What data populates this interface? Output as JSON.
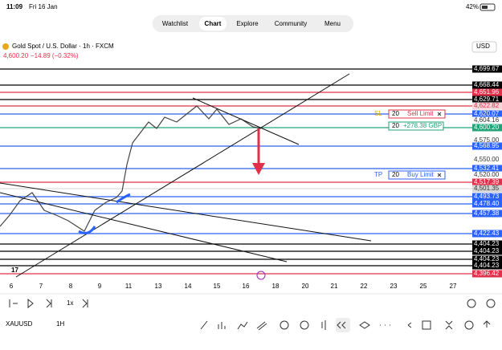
{
  "status": {
    "time": "11:09",
    "date": "Fri 16 Jan",
    "battery": "42%"
  },
  "nav": {
    "tabs": [
      "Watchlist",
      "Chart",
      "Explore",
      "Community",
      "Menu"
    ],
    "selected": "Chart"
  },
  "symbol": {
    "name": "Gold Spot / U.S. Dollar · 1h · FXCM",
    "price": "4,600.20",
    "change": "−14.89 (−0.32%)",
    "currency": "USD"
  },
  "price_axis": [
    {
      "label": "4,699.67",
      "bg": "#000000"
    },
    {
      "label": "4,668.44",
      "bg": "#000000"
    },
    {
      "label": "4,651.96",
      "bg": "#e0304a"
    },
    {
      "label": "4,629.71",
      "bg": "#000000"
    },
    {
      "label": "4,622.82",
      "bg": "#f6d6da"
    },
    {
      "label": "4,620.07",
      "bg": "#2962ff"
    },
    {
      "label": "4,604.16",
      "bg": "#ffffff"
    },
    {
      "label": "4,600.20",
      "bg": "#22a37a"
    },
    {
      "label": "4,575.00",
      "bg": "#ffffff"
    },
    {
      "label": "4,568.95",
      "bg": "#2962ff"
    },
    {
      "label": "4,550.00",
      "bg": "#ffffff"
    },
    {
      "label": "4,532.41",
      "bg": "#2962ff"
    },
    {
      "label": "4,520.00",
      "bg": "#ffffff"
    },
    {
      "label": "4,517.39",
      "bg": "#e0304a"
    },
    {
      "label": "4,501.35",
      "bg": "#d5d5d5"
    },
    {
      "label": "4,493.73",
      "bg": "#2962ff"
    },
    {
      "label": "4,478.40",
      "bg": "#2962ff"
    },
    {
      "label": "4,457.38",
      "bg": "#2962ff"
    },
    {
      "label": "4,422.43",
      "bg": "#2962ff"
    },
    {
      "label": "4,404.23",
      "bg": "#000000"
    },
    {
      "label": "4,404.23",
      "bg": "#000000"
    },
    {
      "label": "4,404.23",
      "bg": "#000000"
    },
    {
      "label": "4,404.23",
      "bg": "#000000"
    },
    {
      "label": "4,396.42",
      "bg": "#e0304a"
    }
  ],
  "time_axis": [
    "6",
    "7",
    "8",
    "9",
    "11",
    "13",
    "14",
    "15",
    "16",
    "18",
    "20",
    "21",
    "22",
    "23",
    "25",
    "27"
  ],
  "orders": [
    {
      "tag": "SL",
      "qty": "20",
      "type": "Sell Limit"
    },
    {
      "qty": "20",
      "pnl": "+278.38 GBP"
    },
    {
      "tag": "TP",
      "qty": "20",
      "type": "Buy Limit"
    }
  ],
  "toolbar": {
    "speed": "1x",
    "ticker": "XAUUSD",
    "interval": "1H"
  }
}
